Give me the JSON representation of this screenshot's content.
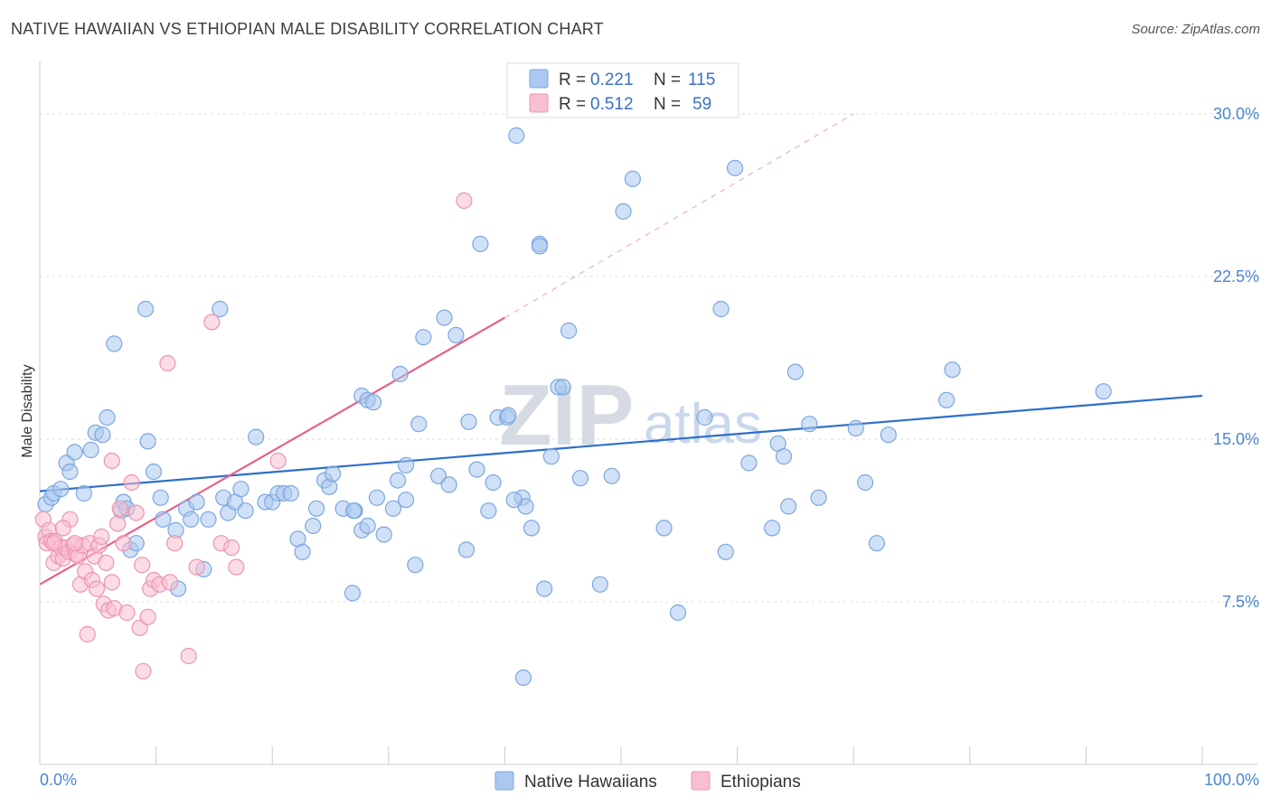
{
  "title": "NATIVE HAWAIIAN VS ETHIOPIAN MALE DISABILITY CORRELATION CHART",
  "source": "Source: ZipAtlas.com",
  "watermark": {
    "zip": "ZIP",
    "atlas": "atlas"
  },
  "legend_top": [
    {
      "r_label": "R = ",
      "r_value": "0.221",
      "n_label": "N = ",
      "n_value": "115",
      "color": "#aac8f0",
      "stroke": "#7da6de"
    },
    {
      "r_label": "R = ",
      "r_value": "0.512",
      "n_label": "N = ",
      "n_value": "59",
      "color": "#f7bfd0",
      "stroke": "#ec94b0"
    }
  ],
  "legend_bottom": [
    {
      "label": "Native Hawaiians",
      "color": "#aac8f0",
      "stroke": "#7da6de"
    },
    {
      "label": "Ethiopians",
      "color": "#f7bfd0",
      "stroke": "#ec94b0"
    }
  ],
  "chart_data": {
    "type": "scatter",
    "ylabel": "Male Disability",
    "xlim": [
      0,
      100
    ],
    "ylim": [
      0,
      32
    ],
    "x_tick_labels": [
      "0.0%",
      "100.0%"
    ],
    "y_ticks": [
      {
        "value": 7.5,
        "label": "7.5%"
      },
      {
        "value": 15.0,
        "label": "15.0%"
      },
      {
        "value": 22.5,
        "label": "22.5%"
      },
      {
        "value": 30.0,
        "label": "30.0%"
      }
    ],
    "grid": true,
    "legend_position": "top-center",
    "series": [
      {
        "name": "Native Hawaiians",
        "color": "#7da6de",
        "fill": "#aac8f0",
        "line_color": "#2f6fc9",
        "trend": {
          "x0": 0,
          "y0": 12.6,
          "x1": 100,
          "y1": 17.0
        },
        "points": [
          [
            0.5,
            12.0
          ],
          [
            1.0,
            12.3
          ],
          [
            1.2,
            12.5
          ],
          [
            1.8,
            12.7
          ],
          [
            2.3,
            13.9
          ],
          [
            2.6,
            13.5
          ],
          [
            3.0,
            14.4
          ],
          [
            3.8,
            12.5
          ],
          [
            4.4,
            14.5
          ],
          [
            4.8,
            15.3
          ],
          [
            5.4,
            15.2
          ],
          [
            5.8,
            16.0
          ],
          [
            6.4,
            19.4
          ],
          [
            7.0,
            11.7
          ],
          [
            7.2,
            12.1
          ],
          [
            7.5,
            11.8
          ],
          [
            7.8,
            9.9
          ],
          [
            8.3,
            10.2
          ],
          [
            9.1,
            21.0
          ],
          [
            9.3,
            14.9
          ],
          [
            9.8,
            13.5
          ],
          [
            10.4,
            12.3
          ],
          [
            10.6,
            11.3
          ],
          [
            11.7,
            10.8
          ],
          [
            11.9,
            8.1
          ],
          [
            12.6,
            11.8
          ],
          [
            13.0,
            11.3
          ],
          [
            13.5,
            12.1
          ],
          [
            14.1,
            9.0
          ],
          [
            14.5,
            11.3
          ],
          [
            15.5,
            21.0
          ],
          [
            15.8,
            12.3
          ],
          [
            16.2,
            11.6
          ],
          [
            16.8,
            12.1
          ],
          [
            17.3,
            12.7
          ],
          [
            17.7,
            11.7
          ],
          [
            18.6,
            15.1
          ],
          [
            19.4,
            12.1
          ],
          [
            20.0,
            12.1
          ],
          [
            20.5,
            12.5
          ],
          [
            21.0,
            12.5
          ],
          [
            21.6,
            12.5
          ],
          [
            22.2,
            10.4
          ],
          [
            22.6,
            9.8
          ],
          [
            23.5,
            11.0
          ],
          [
            23.8,
            11.8
          ],
          [
            24.5,
            13.1
          ],
          [
            24.9,
            12.8
          ],
          [
            25.2,
            13.4
          ],
          [
            26.1,
            11.8
          ],
          [
            26.9,
            7.9
          ],
          [
            27.1,
            11.7
          ],
          [
            27.7,
            10.8
          ],
          [
            28.2,
            11.0
          ],
          [
            29.0,
            12.3
          ],
          [
            29.6,
            10.6
          ],
          [
            30.4,
            11.8
          ],
          [
            31.0,
            18.0
          ],
          [
            31.5,
            12.2
          ],
          [
            27.0,
            11.7
          ],
          [
            27.7,
            17.0
          ],
          [
            28.2,
            16.8
          ],
          [
            28.7,
            16.7
          ],
          [
            30.8,
            13.1
          ],
          [
            31.5,
            13.8
          ],
          [
            32.3,
            9.2
          ],
          [
            32.6,
            15.7
          ],
          [
            33.0,
            19.7
          ],
          [
            34.3,
            13.3
          ],
          [
            34.8,
            20.6
          ],
          [
            35.2,
            12.9
          ],
          [
            35.8,
            19.8
          ],
          [
            36.7,
            9.9
          ],
          [
            36.9,
            15.8
          ],
          [
            37.6,
            13.6
          ],
          [
            38.6,
            11.7
          ],
          [
            39.4,
            16.0
          ],
          [
            40.2,
            16.0
          ],
          [
            41.0,
            29.0
          ],
          [
            41.5,
            12.3
          ],
          [
            41.8,
            11.9
          ],
          [
            42.3,
            10.9
          ],
          [
            43.0,
            24.0
          ],
          [
            43.4,
            8.1
          ],
          [
            44.0,
            14.2
          ],
          [
            44.6,
            17.4
          ],
          [
            45.0,
            17.4
          ],
          [
            45.5,
            20.0
          ],
          [
            46.5,
            13.2
          ],
          [
            48.2,
            8.3
          ],
          [
            49.2,
            13.3
          ],
          [
            50.2,
            25.5
          ],
          [
            51.0,
            27.0
          ],
          [
            53.7,
            10.9
          ],
          [
            54.9,
            7.0
          ],
          [
            57.2,
            16.0
          ],
          [
            58.6,
            21.0
          ],
          [
            59.0,
            9.8
          ],
          [
            59.8,
            27.5
          ],
          [
            61.0,
            13.9
          ],
          [
            63.0,
            10.9
          ],
          [
            63.5,
            14.8
          ],
          [
            64.0,
            14.2
          ],
          [
            64.4,
            11.9
          ],
          [
            65.0,
            18.1
          ],
          [
            66.2,
            15.7
          ],
          [
            67.0,
            12.3
          ],
          [
            70.2,
            15.5
          ],
          [
            71.0,
            13.0
          ],
          [
            72.0,
            10.2
          ],
          [
            73.0,
            15.2
          ],
          [
            78.0,
            16.8
          ],
          [
            78.5,
            18.2
          ],
          [
            91.5,
            17.2
          ],
          [
            43.0,
            23.9
          ],
          [
            37.9,
            24.0
          ],
          [
            39.0,
            13.0
          ],
          [
            41.6,
            4.0
          ],
          [
            40.3,
            16.1
          ],
          [
            40.8,
            12.2
          ]
        ]
      },
      {
        "name": "Ethiopians",
        "color": "#ec94b0",
        "fill": "#f7bfd0",
        "line_color": "#e8608a",
        "trend": {
          "x0": 0,
          "y0": 8.3,
          "x1": 40,
          "y1": 20.6,
          "dash_x1": 70,
          "dash_y1": 30.0
        },
        "points": [
          [
            0.3,
            11.3
          ],
          [
            0.5,
            10.5
          ],
          [
            0.6,
            10.2
          ],
          [
            0.8,
            10.8
          ],
          [
            1.0,
            10.3
          ],
          [
            1.2,
            9.3
          ],
          [
            1.3,
            10.3
          ],
          [
            1.6,
            9.6
          ],
          [
            1.8,
            10.0
          ],
          [
            2.0,
            9.5
          ],
          [
            2.2,
            10.0
          ],
          [
            2.5,
            9.8
          ],
          [
            2.6,
            11.3
          ],
          [
            2.9,
            10.1
          ],
          [
            3.1,
            9.7
          ],
          [
            3.3,
            9.6
          ],
          [
            3.5,
            8.3
          ],
          [
            3.7,
            10.1
          ],
          [
            3.9,
            8.9
          ],
          [
            4.1,
            6.0
          ],
          [
            4.3,
            10.2
          ],
          [
            4.5,
            8.5
          ],
          [
            4.7,
            9.6
          ],
          [
            4.9,
            8.1
          ],
          [
            5.1,
            10.1
          ],
          [
            5.3,
            10.5
          ],
          [
            5.5,
            7.4
          ],
          [
            5.7,
            9.3
          ],
          [
            5.9,
            7.1
          ],
          [
            6.2,
            8.4
          ],
          [
            6.4,
            7.2
          ],
          [
            6.7,
            11.1
          ],
          [
            6.9,
            11.8
          ],
          [
            7.2,
            10.2
          ],
          [
            7.5,
            7.0
          ],
          [
            7.9,
            13.0
          ],
          [
            8.3,
            11.6
          ],
          [
            8.6,
            6.3
          ],
          [
            8.8,
            9.2
          ],
          [
            8.9,
            4.3
          ],
          [
            9.3,
            6.8
          ],
          [
            9.5,
            8.1
          ],
          [
            9.8,
            8.5
          ],
          [
            10.3,
            8.3
          ],
          [
            11.0,
            18.5
          ],
          [
            11.2,
            8.4
          ],
          [
            11.6,
            10.2
          ],
          [
            12.8,
            5.0
          ],
          [
            13.5,
            9.1
          ],
          [
            14.8,
            20.4
          ],
          [
            15.6,
            10.2
          ],
          [
            16.5,
            10.0
          ],
          [
            16.9,
            9.1
          ],
          [
            20.5,
            14.0
          ],
          [
            36.5,
            26.0
          ],
          [
            6.2,
            14.0
          ],
          [
            1.2,
            10.2
          ],
          [
            2.0,
            10.9
          ],
          [
            3.0,
            10.2
          ]
        ]
      }
    ]
  }
}
